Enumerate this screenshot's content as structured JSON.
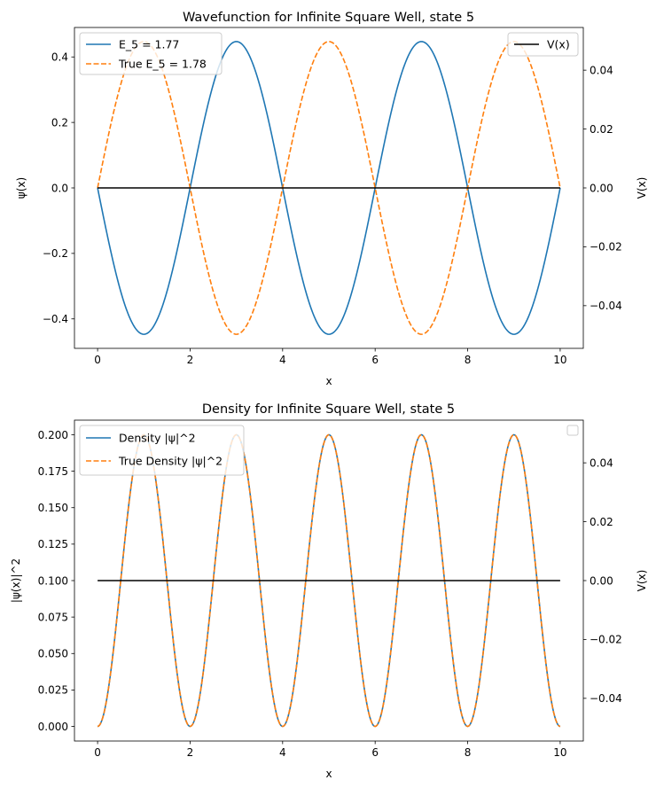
{
  "chart_data": [
    {
      "type": "line",
      "title": "Wavefunction for Infinite Square Well, state 5",
      "xlabel": "x",
      "ylabel": "ψ(x)",
      "ylabel_right": "V(x)",
      "xlim": [
        -0.5,
        10.5
      ],
      "ylim": [
        -0.49,
        0.49
      ],
      "ylim_right": [
        -0.0545,
        0.0545
      ],
      "xticks": [
        0,
        2,
        4,
        6,
        8,
        10
      ],
      "yticks": [
        -0.4,
        -0.2,
        0.0,
        0.2,
        0.4
      ],
      "ytick_labels": [
        "−0.4",
        "−0.2",
        "0.0",
        "0.2",
        "0.4"
      ],
      "yticks_right": [
        -0.04,
        -0.02,
        0.0,
        0.02,
        0.04
      ],
      "ytick_labels_right": [
        "−0.04",
        "−0.02",
        "0.00",
        "0.02",
        "0.04"
      ],
      "series": [
        {
          "name": "E_5 = 1.77",
          "style": "solid",
          "color": "#1f77b4",
          "func": "-0.447*sin(5*pi*x/10)",
          "x_range": [
            0,
            10
          ]
        },
        {
          "name": "True E_5 = 1.78",
          "style": "dashed",
          "color": "#ff7f0e",
          "func": "0.447*sin(5*pi*x/10)",
          "x_range": [
            0,
            10
          ]
        },
        {
          "name": "V(x)",
          "style": "solid",
          "color": "#000000",
          "axis": "right",
          "func": "0",
          "x_range": [
            0,
            10
          ]
        }
      ],
      "legend_left": [
        "E_5 = 1.77",
        "True E_5 = 1.78"
      ],
      "legend_right": [
        "V(x)"
      ]
    },
    {
      "type": "line",
      "title": "Density for Infinite Square Well, state 5",
      "xlabel": "x",
      "ylabel": "|ψ(x)|^2",
      "ylabel_right": "V(x)",
      "xlim": [
        -0.5,
        10.5
      ],
      "ylim": [
        -0.01,
        0.21
      ],
      "ylim_right": [
        -0.0545,
        0.0545
      ],
      "xticks": [
        0,
        2,
        4,
        6,
        8,
        10
      ],
      "yticks": [
        0.0,
        0.025,
        0.05,
        0.075,
        0.1,
        0.125,
        0.15,
        0.175,
        0.2
      ],
      "ytick_labels": [
        "0.000",
        "0.025",
        "0.050",
        "0.075",
        "0.100",
        "0.125",
        "0.150",
        "0.175",
        "0.200"
      ],
      "yticks_right": [
        -0.04,
        -0.02,
        0.0,
        0.02,
        0.04
      ],
      "ytick_labels_right": [
        "−0.04",
        "−0.02",
        "0.00",
        "0.02",
        "0.04"
      ],
      "series": [
        {
          "name": "Density |ψ|^2",
          "style": "solid",
          "color": "#1f77b4",
          "func": "0.2*sin(5*pi*x/10)^2",
          "x_range": [
            0,
            10
          ]
        },
        {
          "name": "True Density |ψ|^2",
          "style": "dashed",
          "color": "#ff7f0e",
          "func": "0.2*sin(5*pi*x/10)^2",
          "x_range": [
            0,
            10
          ]
        },
        {
          "name": "V(x)",
          "style": "solid",
          "color": "#000000",
          "axis": "right",
          "func": "0",
          "x_range": [
            0,
            10
          ]
        }
      ],
      "legend_left": [
        "Density |ψ|^2",
        "True Density |ψ|^2"
      ],
      "legend_right": []
    }
  ]
}
